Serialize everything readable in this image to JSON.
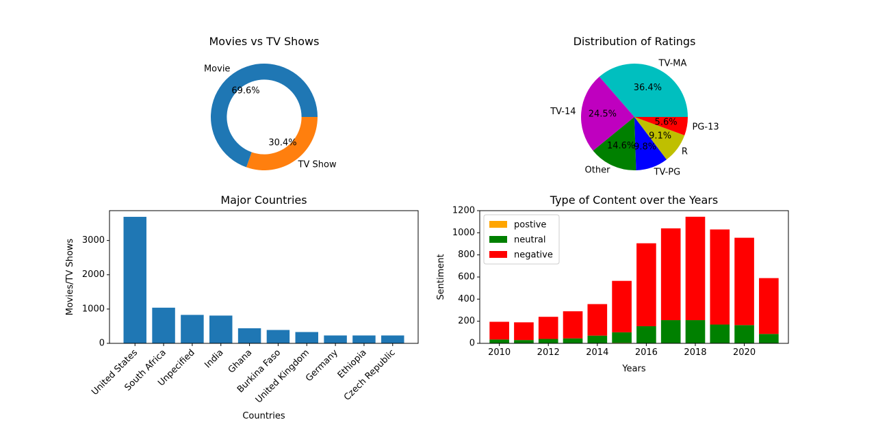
{
  "chart_data": [
    {
      "type": "pie",
      "donut": true,
      "title": "Movies vs TV Shows",
      "labels": [
        "Movie",
        "TV Show"
      ],
      "values": [
        69.6,
        30.4
      ],
      "pct_labels": [
        "69.6%",
        "30.4%"
      ],
      "colors": [
        "#1f77b4",
        "#ff7f0e"
      ]
    },
    {
      "type": "pie",
      "title": "Distribution of Ratings",
      "labels": [
        "TV-MA",
        "TV-14",
        "Other",
        "TV-PG",
        "R",
        "PG-13"
      ],
      "values": [
        36.4,
        24.5,
        14.6,
        9.8,
        9.1,
        5.6
      ],
      "pct_labels": [
        "36.4%",
        "24.5%",
        "14.6%",
        "9.8%",
        "9.1%",
        "5.6%"
      ],
      "colors": [
        "#00bfbf",
        "#bf00bf",
        "#008000",
        "#0000ff",
        "#bfbf00",
        "#ff0000"
      ]
    },
    {
      "type": "bar",
      "title": "Major Countries",
      "xlabel": "Countries",
      "ylabel": "Movies/TV Shows",
      "categories": [
        "United States",
        "South Africa",
        "Unpecified",
        "India",
        "Ghana",
        "Burkina Faso",
        "United Kingdom",
        "Germany",
        "Ethiopia",
        "Czech Republic"
      ],
      "values": [
        3690,
        1040,
        830,
        810,
        440,
        390,
        330,
        230,
        230,
        230
      ],
      "ylim": [
        0,
        3870
      ],
      "yticks": [
        0,
        1000,
        2000,
        3000
      ],
      "color": "#1f77b4"
    },
    {
      "type": "bar",
      "stacked": true,
      "title": "Type of Content over the Years",
      "xlabel": "Years",
      "ylabel": "Sentiment",
      "x": [
        2010,
        2011,
        2012,
        2013,
        2014,
        2015,
        2016,
        2017,
        2018,
        2019,
        2020,
        2021
      ],
      "series": [
        {
          "name": "postive",
          "color": "#ffa500",
          "values": [
            0,
            0,
            0,
            0,
            0,
            5,
            0,
            0,
            0,
            0,
            0,
            0
          ]
        },
        {
          "name": "neutral",
          "color": "#008000",
          "values": [
            35,
            30,
            40,
            45,
            70,
            95,
            155,
            210,
            210,
            170,
            165,
            85
          ]
        },
        {
          "name": "negative",
          "color": "#ff0000",
          "values": [
            160,
            160,
            200,
            245,
            285,
            465,
            750,
            830,
            935,
            860,
            790,
            505
          ]
        }
      ],
      "xlim": [
        2009.2,
        2021.8
      ],
      "ylim": [
        0,
        1200
      ],
      "xticks": [
        2010,
        2012,
        2014,
        2016,
        2018,
        2020
      ],
      "yticks": [
        0,
        200,
        400,
        600,
        800,
        1000,
        1200
      ],
      "legend": "top-left"
    }
  ]
}
